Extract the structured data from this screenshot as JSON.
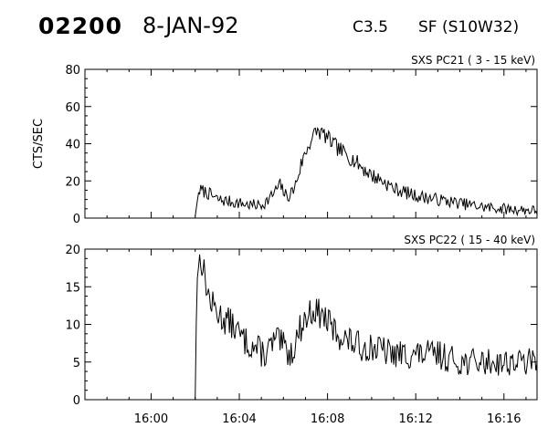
{
  "header": {
    "event_id": "02200",
    "date": "8-JAN-92",
    "flare_class": "C3.5",
    "flare_location": "SF (S10W32)"
  },
  "chart_data": [
    {
      "type": "line",
      "title": "SXS PC21  (  3 - 15 keV)",
      "ylabel": "CTS/SEC",
      "xlabel": "",
      "xlim": [
        "15:57:00",
        "16:17:30"
      ],
      "ylim": [
        0,
        80
      ],
      "yticks": [
        0,
        20,
        40,
        60,
        80
      ],
      "xticks": [
        "16:00",
        "16:04",
        "16:08",
        "16:12",
        "16:16"
      ],
      "show_xtick_labels": false,
      "grid": false,
      "series": [
        {
          "x": [
            "16:02:00",
            "16:02:10",
            "16:02:30",
            "16:03:00",
            "16:03:30",
            "16:04:00",
            "16:04:30",
            "16:05:00",
            "16:05:20",
            "16:05:40",
            "16:05:50",
            "16:06:10",
            "16:06:30",
            "16:06:50",
            "16:07:10",
            "16:07:30",
            "16:07:50",
            "16:08:10",
            "16:08:30",
            "16:09:00",
            "16:09:30",
            "16:10:00",
            "16:10:30",
            "16:11:00",
            "16:12:00",
            "16:13:00",
            "16:14:00",
            "16:15:00",
            "16:16:00",
            "16:17:30"
          ],
          "values": [
            1,
            15,
            14,
            10,
            9,
            8,
            7,
            7,
            10,
            15,
            18,
            11,
            16,
            30,
            40,
            47,
            45,
            41,
            37,
            33,
            28,
            23,
            20,
            16,
            12,
            10,
            8,
            6,
            5,
            4
          ]
        }
      ]
    },
    {
      "type": "line",
      "title": "SXS PC22  ( 15 - 40 keV)",
      "ylabel": "",
      "xlabel": "",
      "xlim": [
        "15:57:00",
        "16:17:30"
      ],
      "ylim": [
        0,
        20
      ],
      "yticks": [
        0,
        5,
        10,
        15,
        20
      ],
      "xticks": [
        "16:00",
        "16:04",
        "16:08",
        "16:12",
        "16:16"
      ],
      "show_xtick_labels": true,
      "grid": false,
      "series": [
        {
          "x": [
            "16:02:00",
            "16:02:05",
            "16:02:15",
            "16:02:40",
            "16:03:10",
            "16:03:40",
            "16:04:10",
            "16:04:40",
            "16:05:10",
            "16:05:40",
            "16:06:00",
            "16:06:20",
            "16:06:50",
            "16:07:20",
            "16:07:50",
            "16:08:20",
            "16:08:50",
            "16:09:30",
            "16:10:00",
            "16:11:00",
            "16:12:00",
            "16:13:00",
            "16:14:00",
            "16:15:00",
            "16:16:00",
            "16:17:30"
          ],
          "values": [
            0,
            17,
            19,
            13,
            11,
            10,
            8,
            7,
            6,
            8,
            7,
            6,
            10,
            12,
            11,
            9,
            8,
            7,
            7,
            6,
            6,
            6,
            5,
            5,
            5,
            5
          ]
        }
      ]
    }
  ]
}
